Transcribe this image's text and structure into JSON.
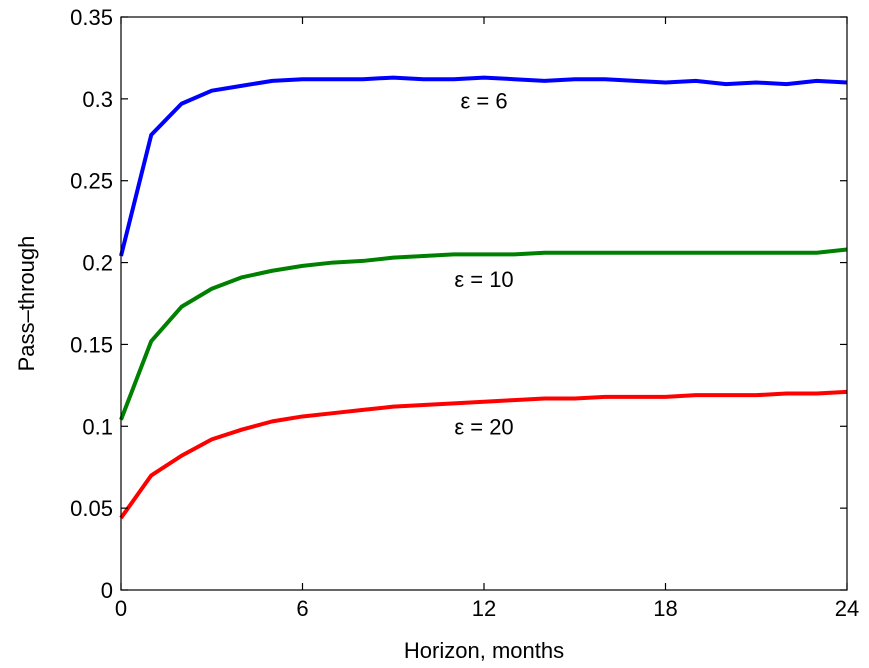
{
  "chart_data": {
    "type": "line",
    "xlabel": "Horizon, months",
    "ylabel": "Pass–through",
    "xlim": [
      0,
      24
    ],
    "ylim": [
      0,
      0.35
    ],
    "xticks": [
      0,
      6,
      12,
      18,
      24
    ],
    "yticks": [
      0,
      0.05,
      0.1,
      0.15,
      0.2,
      0.25,
      0.3,
      0.35
    ],
    "ytick_labels": [
      "0",
      "0.05",
      "0.1",
      "0.15",
      "0.2",
      "0.25",
      "0.3",
      "0.35"
    ],
    "grid": false,
    "x": [
      0,
      1,
      2,
      3,
      4,
      5,
      6,
      7,
      8,
      9,
      10,
      11,
      12,
      13,
      14,
      15,
      16,
      17,
      18,
      19,
      20,
      21,
      22,
      23,
      24
    ],
    "series": [
      {
        "name": "ε = 6",
        "color": "#0000ff",
        "label_at": [
          12,
          0.299
        ],
        "values": [
          0.204,
          0.278,
          0.297,
          0.305,
          0.308,
          0.311,
          0.312,
          0.312,
          0.312,
          0.313,
          0.312,
          0.312,
          0.313,
          0.312,
          0.311,
          0.312,
          0.312,
          0.311,
          0.31,
          0.311,
          0.309,
          0.31,
          0.309,
          0.311,
          0.31
        ]
      },
      {
        "name": "ε = 10",
        "color": "#008000",
        "label_at": [
          12,
          0.19
        ],
        "values": [
          0.104,
          0.152,
          0.173,
          0.184,
          0.191,
          0.195,
          0.198,
          0.2,
          0.201,
          0.203,
          0.204,
          0.205,
          0.205,
          0.205,
          0.206,
          0.206,
          0.206,
          0.206,
          0.206,
          0.206,
          0.206,
          0.206,
          0.206,
          0.206,
          0.208
        ]
      },
      {
        "name": "ε = 20",
        "color": "#ff0000",
        "label_at": [
          12,
          0.1
        ],
        "values": [
          0.044,
          0.07,
          0.082,
          0.092,
          0.098,
          0.103,
          0.106,
          0.108,
          0.11,
          0.112,
          0.113,
          0.114,
          0.115,
          0.116,
          0.117,
          0.117,
          0.118,
          0.118,
          0.118,
          0.119,
          0.119,
          0.119,
          0.12,
          0.12,
          0.121
        ]
      }
    ]
  }
}
